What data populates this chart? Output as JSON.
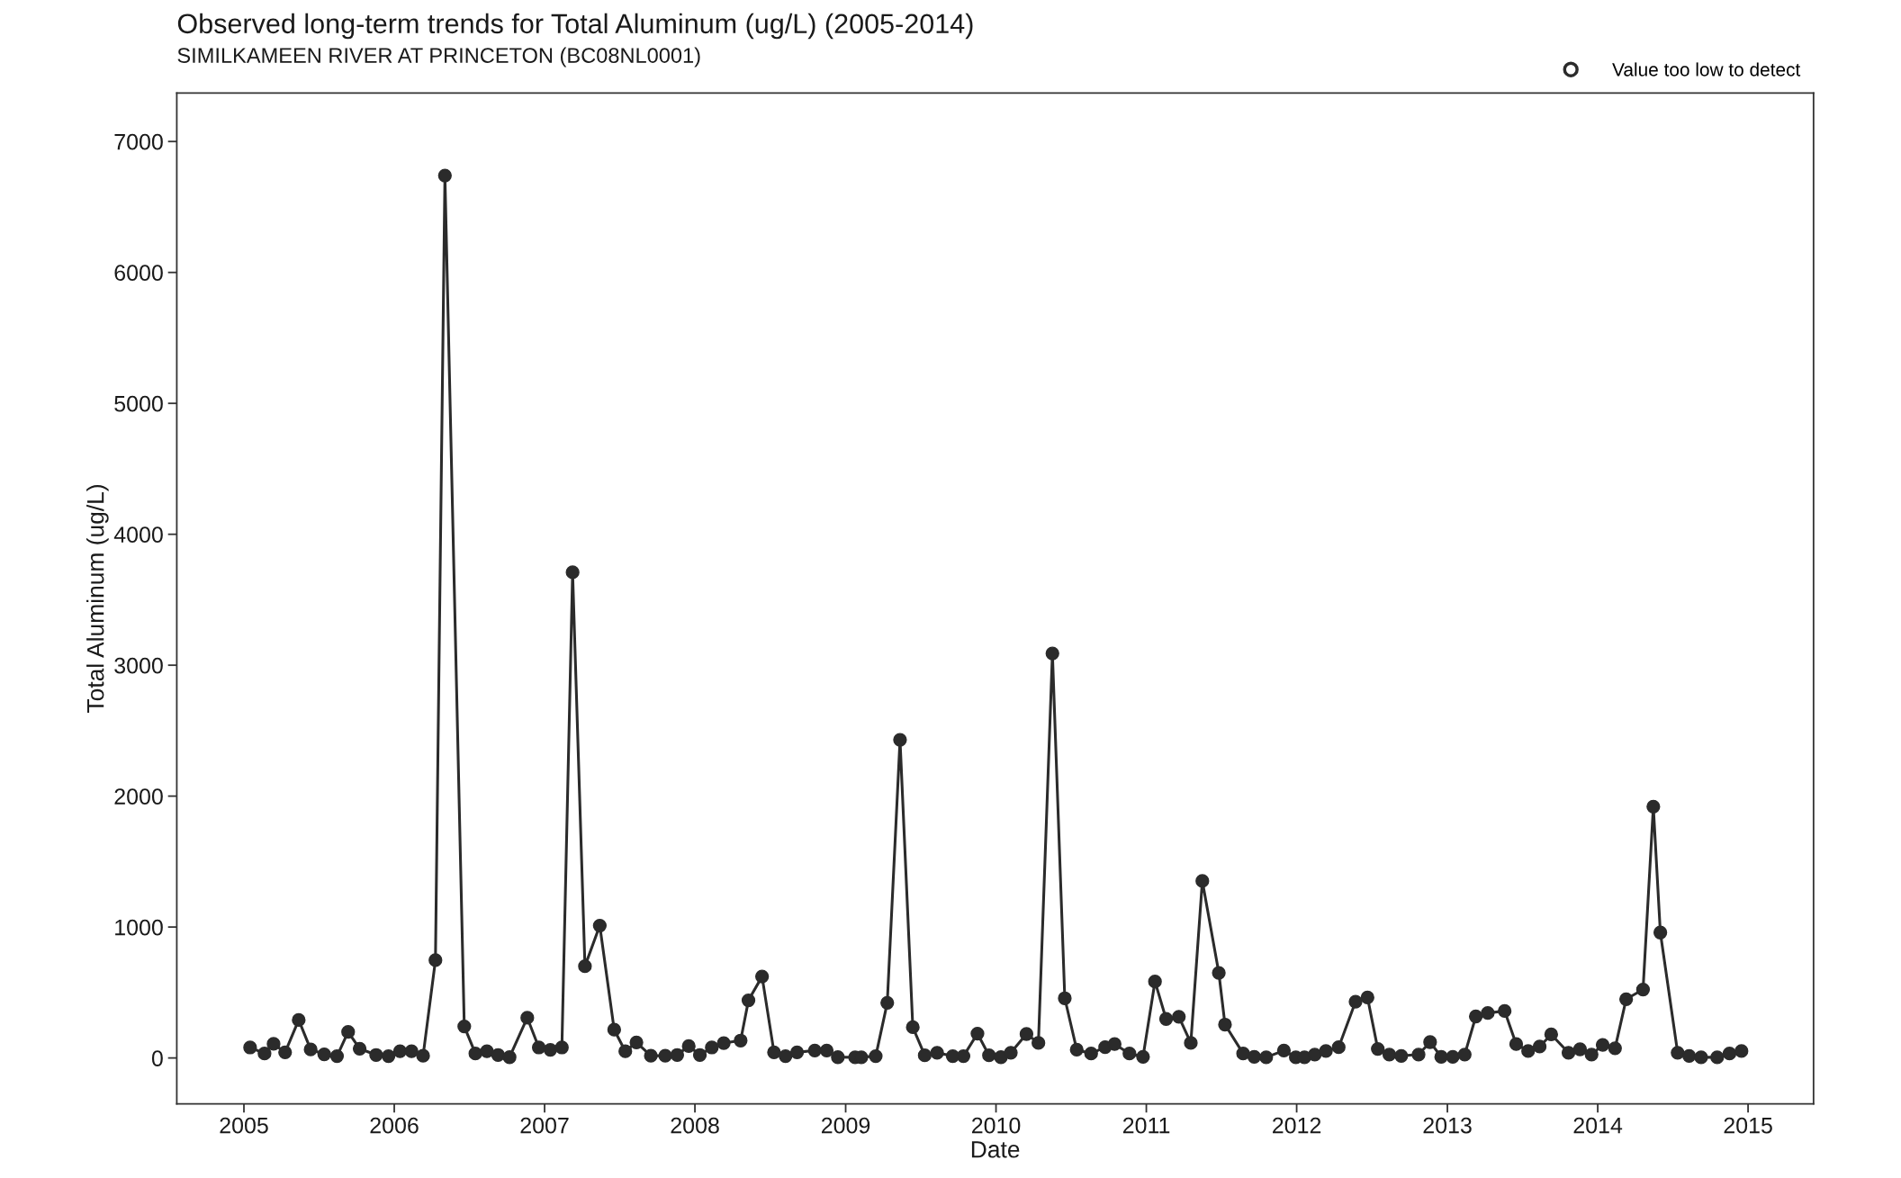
{
  "chart_data": {
    "type": "line",
    "title": "Observed long-term trends for Total Aluminum (ug/L) (2005-2014)",
    "subtitle": "SIMILKAMEEN RIVER AT PRINCETON (BC08NL0001)",
    "xlabel": "Date",
    "ylabel": "Total Aluminum (ug/L)",
    "xlim": [
      "2004-07-22",
      "2015-06-09"
    ],
    "ylim": [
      -350,
      7370
    ],
    "xticks": [
      {
        "value": "2005-01-01",
        "label": "2005"
      },
      {
        "value": "2006-01-01",
        "label": "2006"
      },
      {
        "value": "2007-01-01",
        "label": "2007"
      },
      {
        "value": "2008-01-01",
        "label": "2008"
      },
      {
        "value": "2009-01-01",
        "label": "2009"
      },
      {
        "value": "2010-01-01",
        "label": "2010"
      },
      {
        "value": "2011-01-01",
        "label": "2011"
      },
      {
        "value": "2012-01-01",
        "label": "2012"
      },
      {
        "value": "2013-01-01",
        "label": "2013"
      },
      {
        "value": "2014-01-01",
        "label": "2014"
      },
      {
        "value": "2015-01-01",
        "label": "2015"
      }
    ],
    "yticks": [
      0,
      1000,
      2000,
      3000,
      4000,
      5000,
      6000,
      7000
    ],
    "grid": false,
    "legend": "top right",
    "marker": "circle",
    "line_style": "solid",
    "series": [
      {
        "color": "#2b2b2b",
        "x": [
          "2005-01-16",
          "2005-02-20",
          "2005-03-14",
          "2005-04-11",
          "2005-05-14",
          "2005-06-12",
          "2005-07-15",
          "2005-08-15",
          "2005-09-11",
          "2005-10-09",
          "2005-11-18",
          "2005-12-18",
          "2006-01-15",
          "2006-02-12",
          "2006-03-12",
          "2006-04-11",
          "2006-05-04",
          "2006-06-20",
          "2006-07-17",
          "2006-08-14",
          "2006-09-10",
          "2006-10-08",
          "2006-11-20",
          "2006-12-18",
          "2007-01-15",
          "2007-02-12",
          "2007-03-10",
          "2007-04-09",
          "2007-05-15",
          "2007-06-19",
          "2007-07-16",
          "2007-08-12",
          "2007-09-16",
          "2007-10-21",
          "2007-11-19",
          "2007-12-17",
          "2008-01-13",
          "2008-02-11",
          "2008-03-11",
          "2008-04-21",
          "2008-05-10",
          "2008-06-12",
          "2008-07-11",
          "2008-08-08",
          "2008-09-05",
          "2008-10-18",
          "2008-11-16",
          "2008-12-13",
          "2009-01-24",
          "2009-02-08",
          "2009-03-15",
          "2009-04-12",
          "2009-05-13",
          "2009-06-13",
          "2009-07-12",
          "2009-08-11",
          "2009-09-18",
          "2009-10-14",
          "2009-11-17",
          "2009-12-15",
          "2010-01-13",
          "2010-02-06",
          "2010-03-16",
          "2010-04-14",
          "2010-05-18",
          "2010-06-17",
          "2010-07-16",
          "2010-08-20",
          "2010-09-23",
          "2010-10-16",
          "2010-11-21",
          "2010-12-24",
          "2011-01-22",
          "2011-02-18",
          "2011-03-21",
          "2011-04-19",
          "2011-05-17",
          "2011-06-26",
          "2011-07-11",
          "2011-08-24",
          "2011-09-20",
          "2011-10-19",
          "2011-12-01",
          "2011-12-30",
          "2012-01-20",
          "2012-02-14",
          "2012-03-12",
          "2012-04-12",
          "2012-05-23",
          "2012-06-21",
          "2012-07-16",
          "2012-08-13",
          "2012-09-11",
          "2012-10-23",
          "2012-11-20",
          "2012-12-17",
          "2013-01-14",
          "2013-02-12",
          "2013-03-11",
          "2013-04-09",
          "2013-05-20",
          "2013-06-17",
          "2013-07-16",
          "2013-08-13",
          "2013-09-10",
          "2013-10-22",
          "2013-11-19",
          "2013-12-17",
          "2014-01-13",
          "2014-02-12",
          "2014-03-11",
          "2014-04-21",
          "2014-05-16",
          "2014-06-02",
          "2014-07-14",
          "2014-08-11",
          "2014-09-09",
          "2014-10-18",
          "2014-11-17",
          "2014-12-16"
        ],
        "values": [
          80,
          34,
          108,
          43,
          290,
          65,
          28,
          14,
          199,
          71,
          23,
          14,
          51,
          51,
          17,
          747,
          6740,
          241,
          34,
          51,
          23,
          6,
          307,
          80,
          62,
          80,
          3710,
          701,
          1011,
          216,
          51,
          119,
          17,
          17,
          23,
          91,
          23,
          80,
          114,
          133,
          440,
          622,
          43,
          14,
          43,
          57,
          57,
          6,
          5,
          5,
          14,
          421,
          2430,
          235,
          20,
          40,
          14,
          14,
          186,
          20,
          6,
          40,
          183,
          115,
          3090,
          456,
          63,
          34,
          83,
          106,
          34,
          9,
          584,
          298,
          315,
          115,
          1352,
          650,
          255,
          34,
          9,
          5,
          57,
          5,
          5,
          26,
          53,
          82,
          430,
          462,
          69,
          26,
          16,
          26,
          121,
          8,
          8,
          26,
          317,
          343,
          359,
          106,
          53,
          87,
          180,
          40,
          66,
          26,
          100,
          74,
          449,
          523,
          1920,
          958,
          40,
          16,
          5,
          5,
          34,
          53
        ]
      },
      {
        "type": "scatter",
        "name": "Value too low to detect",
        "color": "#2b2b2b"
      }
    ]
  }
}
